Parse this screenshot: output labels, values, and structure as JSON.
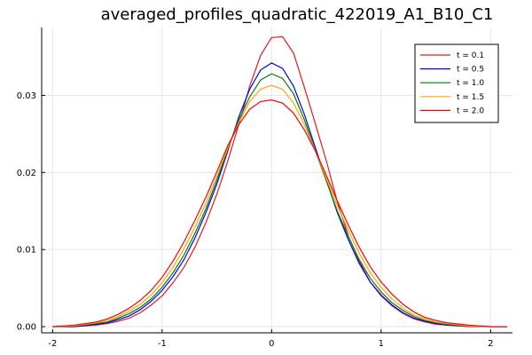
{
  "chart_data": {
    "type": "line",
    "title": "averaged_profiles_quadratic_422019_A1_B10_C1",
    "xlabel": "",
    "ylabel": "",
    "xlim": [
      -2.1,
      2.2
    ],
    "ylim": [
      -0.0008,
      0.0388
    ],
    "xticks": [
      -2,
      -1,
      0,
      1,
      2
    ],
    "xtick_labels": [
      "-2",
      "-1",
      "0",
      "1",
      "2"
    ],
    "yticks": [
      0.0,
      0.01,
      0.02,
      0.03
    ],
    "ytick_labels": [
      "0.00",
      "0.01",
      "0.02",
      "0.03"
    ],
    "grid": true,
    "legend_position": "top-right",
    "series": [
      {
        "name": "t = 0.1",
        "color": "#e41a1c",
        "x": [
          -2.0,
          -1.8,
          -1.6,
          -1.5,
          -1.4,
          -1.3,
          -1.2,
          -1.1,
          -1.0,
          -0.9,
          -0.8,
          -0.7,
          -0.6,
          -0.5,
          -0.4,
          -0.3,
          -0.2,
          -0.1,
          0.0,
          0.1,
          0.2,
          0.3,
          0.4,
          0.5,
          0.6,
          0.7,
          0.8,
          0.9,
          1.0,
          1.1,
          1.2,
          1.3,
          1.4,
          1.5,
          1.6,
          1.8,
          2.0,
          2.15
        ],
        "y": [
          0.0,
          0.0,
          0.0002,
          0.0004,
          0.0007,
          0.0011,
          0.0018,
          0.0028,
          0.004,
          0.0057,
          0.0077,
          0.0103,
          0.0135,
          0.0172,
          0.0215,
          0.0262,
          0.0312,
          0.0352,
          0.0375,
          0.0376,
          0.0355,
          0.031,
          0.0263,
          0.0215,
          0.0162,
          0.0118,
          0.0085,
          0.0058,
          0.004,
          0.0027,
          0.0017,
          0.001,
          0.0006,
          0.0003,
          0.0002,
          0.0,
          0.0,
          0.0
        ]
      },
      {
        "name": "t = 0.5",
        "color": "#0000ff",
        "x": [
          -2.0,
          -1.8,
          -1.6,
          -1.5,
          -1.4,
          -1.3,
          -1.2,
          -1.1,
          -1.0,
          -0.9,
          -0.8,
          -0.7,
          -0.6,
          -0.5,
          -0.4,
          -0.3,
          -0.2,
          -0.1,
          0.0,
          0.1,
          0.2,
          0.3,
          0.4,
          0.5,
          0.6,
          0.7,
          0.8,
          0.9,
          1.0,
          1.1,
          1.2,
          1.3,
          1.4,
          1.5,
          1.6,
          1.8,
          2.0,
          2.15
        ],
        "y": [
          0.0,
          0.0,
          0.0003,
          0.0005,
          0.0009,
          0.0014,
          0.0022,
          0.0033,
          0.0047,
          0.0065,
          0.0087,
          0.0115,
          0.0148,
          0.0185,
          0.0228,
          0.0272,
          0.0308,
          0.0333,
          0.0342,
          0.0335,
          0.0312,
          0.0275,
          0.0232,
          0.019,
          0.0148,
          0.0113,
          0.0082,
          0.0058,
          0.0041,
          0.0028,
          0.0018,
          0.0011,
          0.0007,
          0.0004,
          0.0002,
          0.0001,
          0.0,
          0.0
        ]
      },
      {
        "name": "t = 1.0",
        "color": "#008000",
        "x": [
          -2.0,
          -1.8,
          -1.6,
          -1.5,
          -1.4,
          -1.3,
          -1.2,
          -1.1,
          -1.0,
          -0.9,
          -0.8,
          -0.7,
          -0.6,
          -0.5,
          -0.4,
          -0.3,
          -0.2,
          -0.1,
          0.0,
          0.1,
          0.2,
          0.3,
          0.4,
          0.5,
          0.6,
          0.7,
          0.8,
          0.9,
          1.0,
          1.1,
          1.2,
          1.3,
          1.4,
          1.5,
          1.6,
          1.8,
          2.0,
          2.15
        ],
        "y": [
          0.0,
          0.0001,
          0.0004,
          0.0006,
          0.0011,
          0.0017,
          0.0025,
          0.0036,
          0.0051,
          0.007,
          0.0093,
          0.0121,
          0.0153,
          0.019,
          0.023,
          0.0268,
          0.0298,
          0.032,
          0.0328,
          0.0322,
          0.0302,
          0.0268,
          0.0228,
          0.0189,
          0.015,
          0.0117,
          0.0087,
          0.0063,
          0.0045,
          0.0031,
          0.0021,
          0.0013,
          0.0008,
          0.0005,
          0.0003,
          0.0001,
          0.0,
          0.0
        ]
      },
      {
        "name": "t = 1.5",
        "color": "#ffa500",
        "x": [
          -2.0,
          -1.8,
          -1.6,
          -1.5,
          -1.4,
          -1.3,
          -1.2,
          -1.1,
          -1.0,
          -0.9,
          -0.8,
          -0.7,
          -0.6,
          -0.5,
          -0.4,
          -0.3,
          -0.2,
          -0.1,
          0.0,
          0.1,
          0.2,
          0.3,
          0.4,
          0.5,
          0.6,
          0.7,
          0.8,
          0.9,
          1.0,
          1.1,
          1.2,
          1.3,
          1.4,
          1.5,
          1.6,
          1.8,
          2.0,
          2.15
        ],
        "y": [
          0.0,
          0.0001,
          0.0005,
          0.0008,
          0.0013,
          0.002,
          0.0029,
          0.0041,
          0.0057,
          0.0077,
          0.0101,
          0.0129,
          0.016,
          0.0195,
          0.0232,
          0.0265,
          0.0292,
          0.0308,
          0.0313,
          0.0308,
          0.029,
          0.0262,
          0.0228,
          0.0192,
          0.0157,
          0.0125,
          0.0095,
          0.007,
          0.0051,
          0.0036,
          0.0024,
          0.0015,
          0.001,
          0.0006,
          0.0004,
          0.0001,
          0.0,
          0.0
        ]
      },
      {
        "name": "t = 2.0",
        "color": "#ff0000",
        "x": [
          -2.0,
          -1.8,
          -1.6,
          -1.5,
          -1.4,
          -1.3,
          -1.2,
          -1.1,
          -1.0,
          -0.9,
          -0.8,
          -0.7,
          -0.6,
          -0.5,
          -0.4,
          -0.3,
          -0.2,
          -0.1,
          0.0,
          0.1,
          0.2,
          0.3,
          0.4,
          0.5,
          0.6,
          0.7,
          0.8,
          0.9,
          1.0,
          1.1,
          1.2,
          1.3,
          1.4,
          1.5,
          1.6,
          1.8,
          2.0,
          2.15
        ],
        "y": [
          0.0,
          0.0002,
          0.0006,
          0.001,
          0.0016,
          0.0024,
          0.0034,
          0.0047,
          0.0064,
          0.0085,
          0.011,
          0.0138,
          0.0168,
          0.0201,
          0.0235,
          0.0262,
          0.0282,
          0.0292,
          0.0294,
          0.029,
          0.0277,
          0.0255,
          0.0228,
          0.0196,
          0.0163,
          0.0132,
          0.0103,
          0.0078,
          0.0058,
          0.0042,
          0.0029,
          0.0019,
          0.0012,
          0.0008,
          0.0005,
          0.0002,
          0.0,
          0.0
        ]
      }
    ]
  }
}
